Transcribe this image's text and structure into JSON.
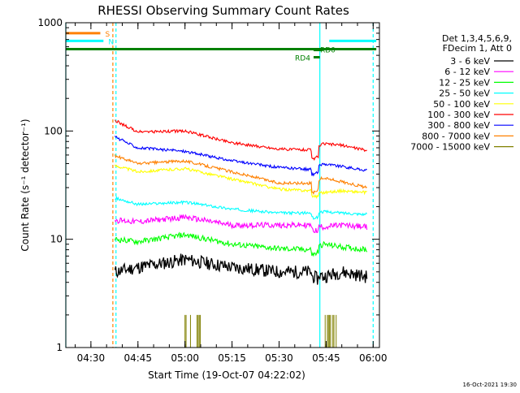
{
  "chart_data": {
    "type": "line",
    "title": "RHESSI Observing Summary Count Rates",
    "xlabel": "Start Time (19-Oct-07 04:22:02)",
    "ylabel": "Count Rate (s⁻¹ detector⁻¹)",
    "yscale": "log",
    "ylim": [
      1,
      1000
    ],
    "xlim": [
      "04:22",
      "06:02"
    ],
    "x_ticks": [
      "04:30",
      "04:45",
      "05:00",
      "05:15",
      "05:30",
      "05:45",
      "06:00"
    ],
    "y_ticks": [
      "1",
      "10",
      "100",
      "1000"
    ],
    "legend_header": [
      "Det 1,3,4,5,6,9,",
      "FDecim 1, Att 0"
    ],
    "legend_position": "right",
    "footer": "16-Oct-2021 19:30",
    "series": [
      {
        "name": "3 - 6 keV",
        "color": "#000000",
        "x": [
          "04:37:40",
          "04:45",
          "05:00",
          "05:15",
          "05:30",
          "05:41",
          "05:44",
          "05:50",
          "05:58"
        ],
        "values": [
          5,
          5.5,
          6.5,
          5.5,
          5,
          5,
          4.5,
          5,
          4.5
        ]
      },
      {
        "name": "6 - 12 keV",
        "color": "#ff00ff",
        "x": [
          "04:37:40",
          "04:45",
          "05:00",
          "05:15",
          "05:30",
          "05:41",
          "05:44",
          "05:50",
          "05:58"
        ],
        "values": [
          15,
          14.5,
          16,
          13.5,
          13.5,
          13.5,
          13,
          13.5,
          13
        ]
      },
      {
        "name": "12 - 25 keV",
        "color": "#00ff00",
        "x": [
          "04:37:40",
          "04:45",
          "05:00",
          "05:15",
          "05:30",
          "05:41",
          "05:44",
          "05:50",
          "05:58"
        ],
        "values": [
          10,
          9.5,
          11,
          9,
          8.2,
          8,
          9,
          8.5,
          8
        ]
      },
      {
        "name": "25 - 50 keV",
        "color": "#00ffff",
        "x": [
          "04:37:40",
          "04:45",
          "05:00",
          "05:15",
          "05:30",
          "05:41",
          "05:44",
          "05:50",
          "05:58"
        ],
        "values": [
          24,
          21,
          22,
          19,
          17.5,
          17.5,
          18,
          17.5,
          17
        ]
      },
      {
        "name": "50 - 100 keV",
        "color": "#ffff00",
        "x": [
          "04:37:40",
          "04:45",
          "05:00",
          "05:15",
          "05:30",
          "05:41",
          "05:44",
          "05:50",
          "05:58"
        ],
        "values": [
          48,
          42,
          45,
          36,
          29,
          28,
          27,
          28,
          27
        ]
      },
      {
        "name": "100 - 300 keV",
        "color": "#ff0000",
        "x": [
          "04:37:40",
          "04:45",
          "05:00",
          "05:15",
          "05:30",
          "05:41",
          "05:44",
          "05:50",
          "05:58"
        ],
        "values": [
          125,
          98,
          100,
          78,
          68,
          67,
          76,
          74,
          66
        ]
      },
      {
        "name": "300 - 800 keV",
        "color": "#0000ff",
        "x": [
          "04:37:40",
          "04:45",
          "05:00",
          "05:15",
          "05:30",
          "05:41",
          "05:44",
          "05:50",
          "05:58"
        ],
        "values": [
          88,
          70,
          65,
          53,
          46,
          44,
          50,
          47,
          43
        ]
      },
      {
        "name": "800 - 7000 keV",
        "color": "#ff8000",
        "x": [
          "04:37:40",
          "04:45",
          "05:00",
          "05:15",
          "05:30",
          "05:41",
          "05:44",
          "05:50",
          "05:58"
        ],
        "values": [
          59,
          50,
          53,
          42,
          33,
          33,
          37,
          34,
          30
        ]
      },
      {
        "name": "7000 - 15000 keV",
        "color": "#808000",
        "x": [
          "05:00",
          "05:05",
          "05:44",
          "05:49"
        ],
        "values": [
          2,
          2,
          2,
          2
        ]
      }
    ],
    "bars": [
      {
        "label": "S",
        "color": "#ff8000",
        "x": [
          "04:22",
          "04:33"
        ],
        "y": 800
      },
      {
        "label": "N",
        "color": "#00ffff",
        "x": [
          "04:22",
          "04:34"
        ],
        "y": 680
      },
      {
        "label": "",
        "color": "#00ffff",
        "x": [
          "05:46",
          "06:01"
        ],
        "y": 680
      },
      {
        "label": "",
        "color": "#008000",
        "x": [
          "04:22",
          "06:01"
        ],
        "y": 570
      },
      {
        "label": "RD0",
        "color": "#008000",
        "x": [
          "05:41",
          "05:44"
        ],
        "y": 560
      },
      {
        "label": "RD4",
        "color": "#008000",
        "x": [
          "05:41",
          "05:43"
        ],
        "y": 480
      }
    ],
    "vlines": [
      {
        "x": "04:22",
        "color": "#00ffff",
        "style": "solid"
      },
      {
        "x": "04:37",
        "color": "#ff8000",
        "style": "dashed"
      },
      {
        "x": "04:38",
        "color": "#00ffff",
        "style": "dashed"
      },
      {
        "x": "05:43",
        "color": "#00ffff",
        "style": "solid"
      },
      {
        "x": "06:00",
        "color": "#00ffff",
        "style": "dashed"
      }
    ],
    "grid": false
  }
}
